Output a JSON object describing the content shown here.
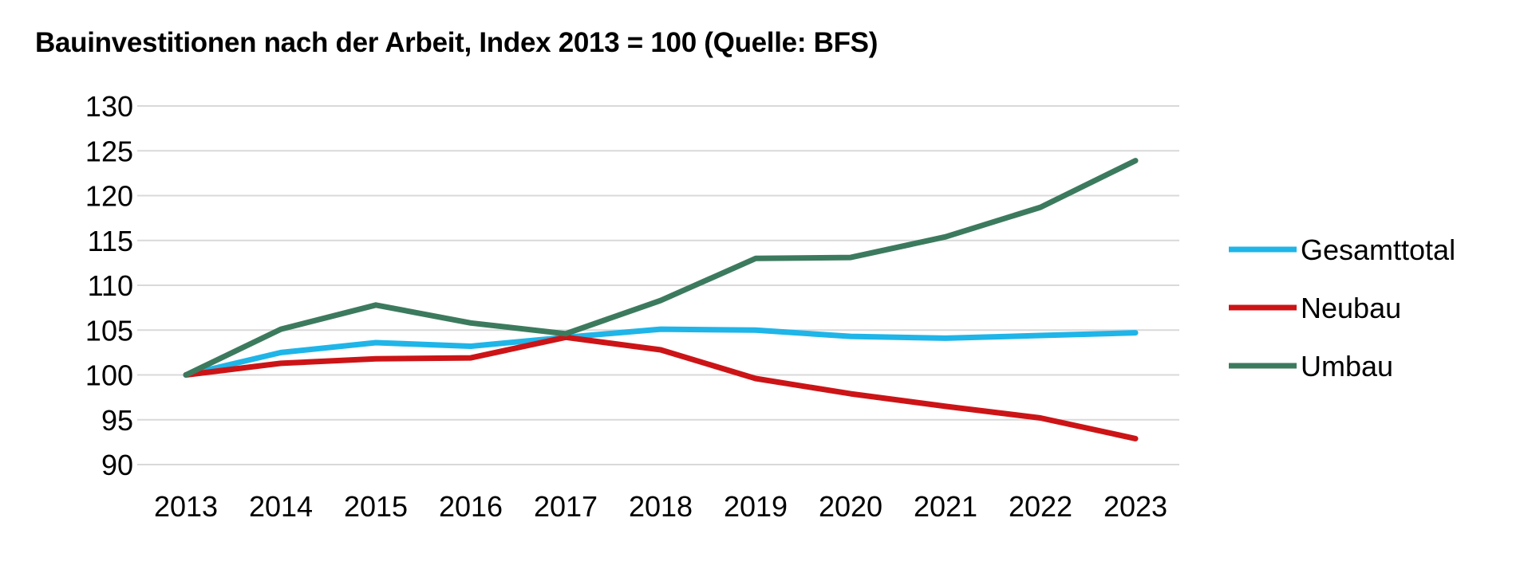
{
  "chart_data": {
    "type": "line",
    "title": "Bauinvestitionen nach der Arbeit,  Index 2013 = 100 (Quelle: BFS)",
    "xlabel": "",
    "ylabel": "",
    "x": [
      "2013",
      "2014",
      "2015",
      "2016",
      "2017",
      "2018",
      "2019",
      "2020",
      "2021",
      "2022",
      "2023"
    ],
    "ylim": [
      90,
      130
    ],
    "yticks": [
      90,
      95,
      100,
      105,
      110,
      115,
      120,
      125,
      130
    ],
    "grid": true,
    "legend_position": "right",
    "series": [
      {
        "name": "Gesamttotal",
        "color": "#1fb5e8",
        "values": [
          100.0,
          102.5,
          103.6,
          103.2,
          104.2,
          105.1,
          105.0,
          104.3,
          104.1,
          104.4,
          104.7
        ]
      },
      {
        "name": "Neubau",
        "color": "#cc1417",
        "values": [
          100.0,
          101.3,
          101.8,
          101.9,
          104.2,
          102.8,
          99.6,
          97.9,
          96.5,
          95.2,
          92.9
        ]
      },
      {
        "name": "Umbau",
        "color": "#3c7a5e",
        "values": [
          100.0,
          105.1,
          107.8,
          105.8,
          104.6,
          108.3,
          113.0,
          113.1,
          115.4,
          118.7,
          123.9
        ]
      }
    ]
  }
}
